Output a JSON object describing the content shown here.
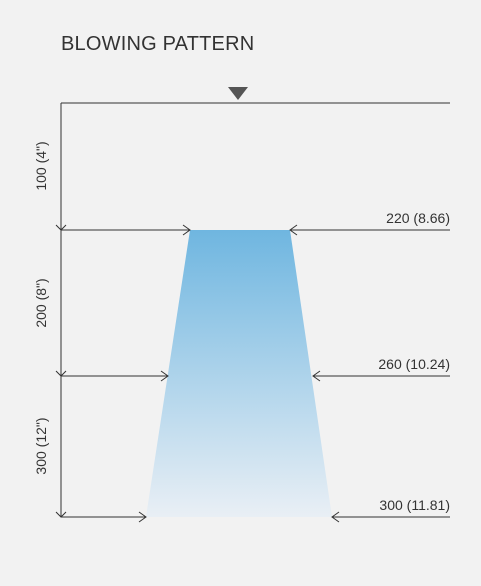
{
  "title": "BLOWING PATTERN",
  "colors": {
    "background": "#f2f2f2",
    "line": "#333333",
    "gradient_top": "#6fb6e0",
    "gradient_bottom": "#e9eff5"
  },
  "distances": {
    "d1": "100 (4\")",
    "d2": "200 (8\")",
    "d3": "300 (12\")"
  },
  "widths": {
    "w1": "220 (8.66)",
    "w2": "260 (10.24)",
    "w3": "300 (11.81)"
  },
  "icons": {
    "nozzle": "triangle-down-icon"
  }
}
